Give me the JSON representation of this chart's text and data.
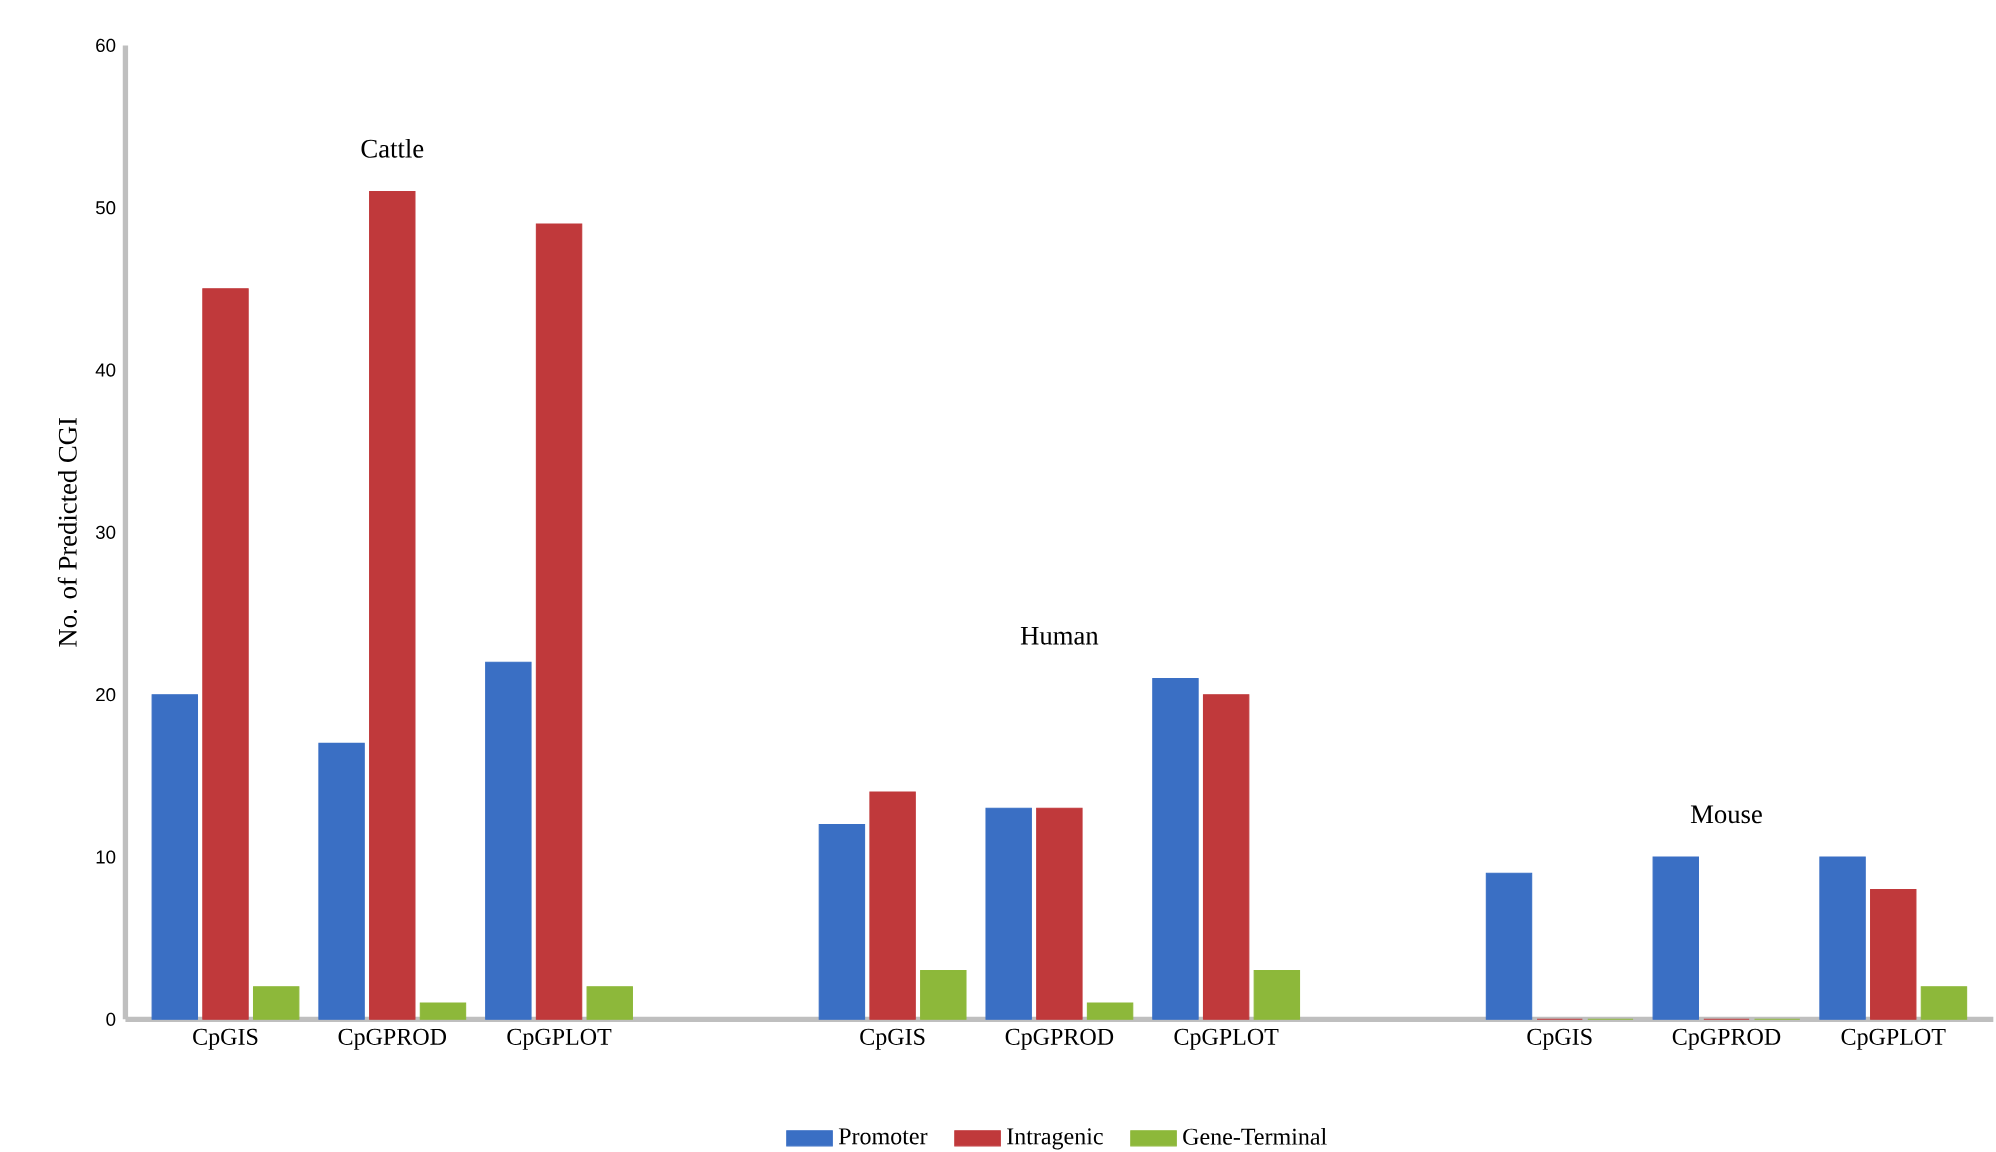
{
  "chart_data": {
    "type": "bar",
    "ylabel": "No. of Predicted CGI",
    "categories": [
      "CpGIS",
      "CpGPROD",
      "CpGPLOT",
      null,
      "CpGIS",
      "CpGPROD",
      "CpGPLOT",
      null,
      "CpGIS",
      "CpGPROD",
      "CpGPLOT"
    ],
    "series": [
      {
        "name": "Promoter",
        "color": "#3a6fc4",
        "values": [
          20,
          17,
          22,
          null,
          12,
          13,
          21,
          null,
          9,
          10,
          10
        ]
      },
      {
        "name": "Intragenic",
        "color": "#c0393b",
        "values": [
          45,
          51,
          49,
          null,
          14,
          13,
          20,
          null,
          0,
          0,
          8
        ]
      },
      {
        "name": "Gene-Terminal",
        "color": "#8db83a",
        "values": [
          2,
          1,
          2,
          null,
          3,
          1,
          3,
          null,
          0,
          0,
          2
        ]
      }
    ],
    "ylim": [
      0,
      60
    ],
    "yticks": [
      0,
      10,
      20,
      30,
      40,
      50,
      60
    ],
    "grid": false,
    "legend": "bottom",
    "annotations": [
      "Cattle",
      "Human",
      "Mouse"
    ]
  }
}
